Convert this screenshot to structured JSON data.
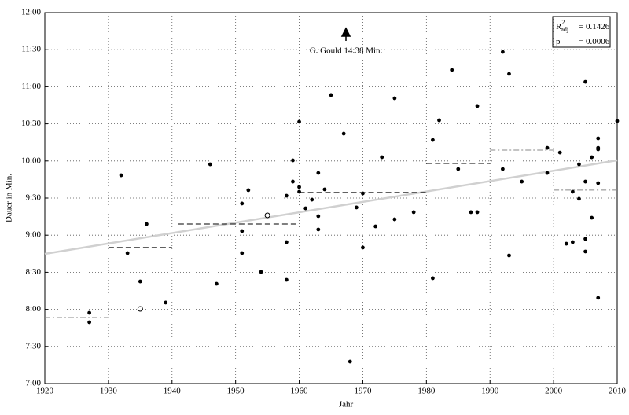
{
  "chart_data": {
    "type": "scatter",
    "x_label": "Jahr",
    "y_label": "Dauer in Min.",
    "annotation": "G. Gould 14:38 Min.",
    "stats": {
      "r2_label": "R",
      "r2_sup": "2",
      "r2_sub": "adj.",
      "r2_text": "= 0.1426",
      "p_label": "p",
      "p_text": "= 0.0006"
    },
    "xlim": [
      1920,
      2010
    ],
    "ylim": [
      420,
      720
    ],
    "xticks": [
      1920,
      1930,
      1940,
      1950,
      1960,
      1970,
      1980,
      1990,
      2000,
      2010
    ],
    "yticks": [
      {
        "value": 420,
        "label": "7:00"
      },
      {
        "value": 450,
        "label": "7:30"
      },
      {
        "value": 480,
        "label": "8:00"
      },
      {
        "value": 510,
        "label": "8:30"
      },
      {
        "value": 540,
        "label": "9:00"
      },
      {
        "value": 570,
        "label": "9:30"
      },
      {
        "value": 600,
        "label": "10:00"
      },
      {
        "value": 630,
        "label": "10:30"
      },
      {
        "value": 660,
        "label": "11:00"
      },
      {
        "value": 690,
        "label": "11:30"
      },
      {
        "value": 720,
        "label": "12:00"
      }
    ],
    "grid": true,
    "color": "#000000",
    "x": [
      1927,
      1927,
      1932,
      1933,
      1935,
      1936,
      1939,
      1946,
      1947,
      1951,
      1951,
      1951,
      1952,
      1954,
      1958,
      1958,
      1958,
      1959,
      1959,
      1960,
      1960,
      1960,
      1961,
      1962,
      1963,
      1963,
      1963,
      1964,
      1965,
      1967,
      1968,
      1969,
      1970,
      1970,
      1972,
      1973,
      1975,
      1975,
      1978,
      1981,
      1981,
      1982,
      1984,
      1985,
      1987,
      1988,
      1988,
      1992,
      1992,
      1993,
      1993,
      1995,
      1999,
      1999,
      2001,
      2002,
      2003,
      2003,
      2004,
      2004,
      2005,
      2005,
      2005,
      2005,
      2006,
      2006,
      2007,
      2007,
      2007,
      2007,
      2007,
      2010
    ],
    "values": [
      477.2,
      469.6,
      588.4,
      525.5,
      502.6,
      549,
      485.5,
      597.3,
      500.7,
      565.6,
      543.3,
      525.5,
      576.4,
      510.3,
      534.4,
      571.9,
      503.9,
      600.5,
      583.3,
      631.7,
      578.9,
      575.1,
      561.7,
      568.7,
      590.3,
      555.4,
      544.6,
      577,
      653.3,
      622.1,
      437.8,
      562.4,
      573.8,
      530,
      547.1,
      603,
      552.8,
      650.7,
      558.6,
      617,
      505.2,
      632.9,
      673.6,
      593.5,
      558.6,
      558.6,
      644.4,
      688.2,
      593.5,
      670.4,
      523.6,
      583.3,
      610.6,
      590.3,
      606.8,
      533.1,
      534.4,
      575.1,
      597.3,
      569.4,
      664,
      583.3,
      537,
      526.8,
      603,
      554.1,
      618.3,
      610.6,
      609.4,
      582.1,
      489.3,
      632.3
    ],
    "open_points": {
      "x": [
        1935,
        1955
      ],
      "values": [
        480.4,
        556
      ]
    },
    "segments": [
      {
        "x": [
          1920,
          1930
        ],
        "value": 473.4,
        "color": "#888888",
        "style": "dashdot"
      },
      {
        "x": [
          1930,
          1940
        ],
        "value": 530,
        "color": "#000000",
        "style": "dash"
      },
      {
        "x": [
          1941,
          1960
        ],
        "value": 549,
        "color": "#000000",
        "style": "dash"
      },
      {
        "x": [
          1960,
          1980
        ],
        "value": 574.5,
        "color": "#000000",
        "style": "dash"
      },
      {
        "x": [
          1980,
          1990
        ],
        "value": 598,
        "color": "#000000",
        "style": "dash"
      },
      {
        "x": [
          1990,
          2000
        ],
        "value": 608.8,
        "color": "#888888",
        "style": "dashdot"
      },
      {
        "x": [
          2000,
          2010
        ],
        "value": 576.4,
        "color": "#888888",
        "style": "dashdot"
      }
    ],
    "trend": {
      "x": [
        1920,
        2010
      ],
      "values": [
        524.9,
        600.5
      ],
      "color": "#d0d0d0"
    }
  }
}
